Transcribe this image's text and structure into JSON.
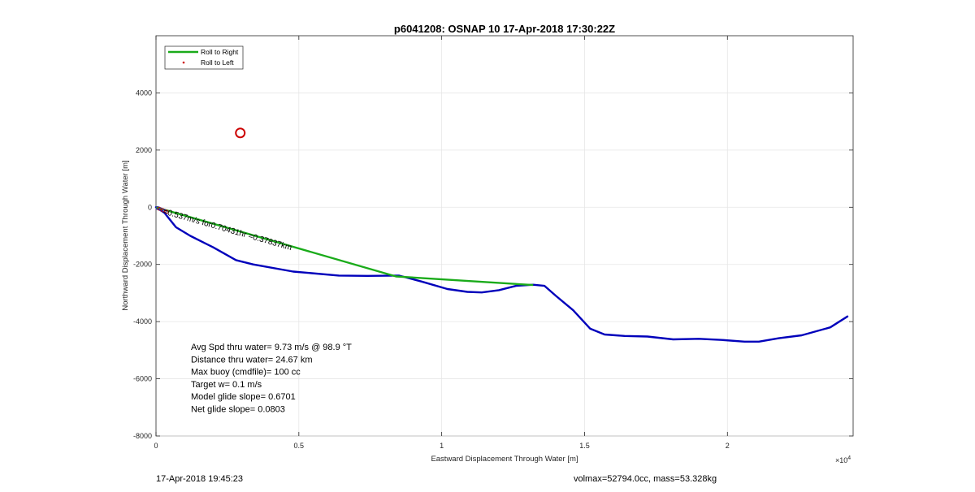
{
  "footer": {
    "timestamp": "17-Apr-2018 19:45:23",
    "volmax_mass": "volmax=52794.0cc, mass=53.328kg"
  },
  "chart_data": {
    "type": "line",
    "title": "p6041208: OSNAP 10 17-Apr-2018 17:30:22Z",
    "xlabel": "Eastward Displacement Through Water [m]",
    "ylabel": "Northward Displacement Through Water [m]",
    "x_multiplier_label": "×10",
    "x_multiplier_exponent": "4",
    "xlim": [
      0,
      24400
    ],
    "ylim": [
      -8000,
      6000
    ],
    "xticks": [
      0,
      5000,
      10000,
      15000,
      20000
    ],
    "xtick_labels": [
      "0",
      "0.5",
      "1",
      "1.5",
      "2"
    ],
    "yticks": [
      -8000,
      -6000,
      -4000,
      -2000,
      0,
      2000,
      4000
    ],
    "ytick_labels": [
      "-8000",
      "-6000",
      "-4000",
      "-2000",
      "0",
      "2000",
      "4000"
    ],
    "grid": true,
    "legend_position": "top-left",
    "legend": [
      {
        "name": "Roll to Right",
        "color": "#1aab1a",
        "style": "line"
      },
      {
        "name": "Roll to Left",
        "color": "#cc0000",
        "style": "dot"
      }
    ],
    "series": [
      {
        "name": "Roll to Right",
        "role": "green-segment",
        "color": "#1aab1a",
        "x": [
          0,
          8400,
          13200
        ],
        "y": [
          0,
          -2420,
          -2720
        ]
      },
      {
        "role": "track",
        "color": "#0000bb",
        "x": [
          0,
          300,
          700,
          1200,
          2000,
          2800,
          3400,
          4800,
          6400,
          7400,
          8500,
          9300,
          10200,
          10900,
          11400,
          12000,
          12600,
          13200,
          13600,
          14000,
          14600,
          15200,
          15700,
          16400,
          17200,
          18100,
          19000,
          19800,
          20600,
          21100,
          21800,
          22600,
          23600,
          24200
        ],
        "y": [
          0,
          -200,
          -700,
          -1000,
          -1400,
          -1850,
          -2000,
          -2250,
          -2390,
          -2400,
          -2390,
          -2600,
          -2860,
          -2960,
          -2980,
          -2900,
          -2750,
          -2710,
          -2750,
          -3100,
          -3600,
          -4250,
          -4450,
          -4500,
          -4520,
          -4620,
          -4600,
          -4640,
          -4700,
          -4700,
          -4580,
          -4480,
          -4200,
          -3820
        ]
      }
    ],
    "marker": {
      "name": "target-circle",
      "x": 2950,
      "y": 2600,
      "color": "#cc0000"
    },
    "segment_label": "=0.537m/s for0.70431hr =0.37837km",
    "stats": [
      "Avg Spd thru water=  9.73 m/s @  98.9 °T",
      "Distance thru water= 24.67 km",
      "Max buoy (cmdfile)= 100 cc",
      "Target w= 0.1 m/s",
      "Model glide slope= 0.6701",
      "Net glide slope= 0.0803"
    ]
  }
}
